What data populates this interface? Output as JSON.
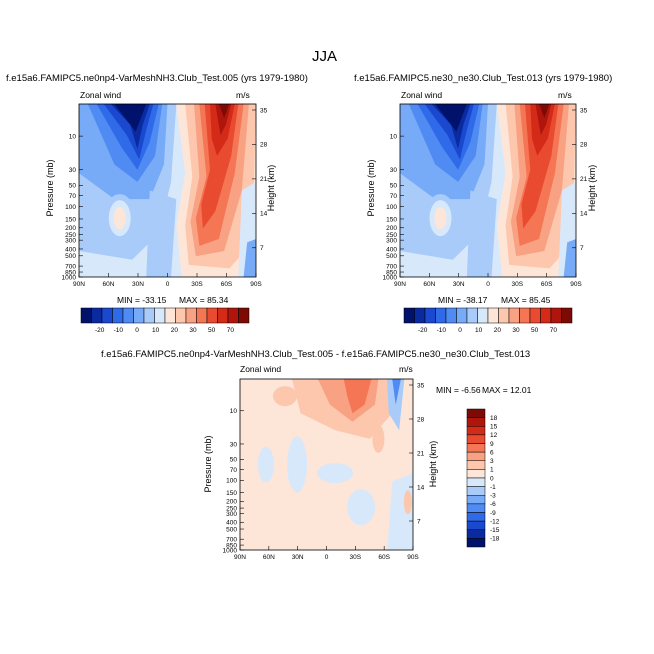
{
  "page": {
    "title": "JJA"
  },
  "chart_data": [
    {
      "id": "panel1",
      "type": "heatmap",
      "title": "f.e15a6.FAMIPC5.ne0np4-VarMeshNH3.Club_Test.005 (yrs 1979-1980)",
      "field_label": "Zonal wind",
      "units": "m/s",
      "xlabel": "",
      "ylabel": "Pressure (mb)",
      "right_ylabel": "Height (km)",
      "x_ticks": [
        "90N",
        "60N",
        "30N",
        "0",
        "30S",
        "60S",
        "90S"
      ],
      "y_ticks": [
        "10",
        "30",
        "50",
        "70",
        "100",
        "150",
        "200",
        "250",
        "300",
        "400",
        "500",
        "700",
        "850",
        "1000"
      ],
      "right_ticks": [
        "35",
        "28",
        "21",
        "14",
        "7"
      ],
      "min_label": "MIN = -33.15",
      "max_label": "MAX = 85.34",
      "min": -33.15,
      "max": 85.34,
      "colorbar_levels": [
        "-20",
        "-10",
        "0",
        "10",
        "20",
        "30",
        "50",
        "70"
      ]
    },
    {
      "id": "panel2",
      "type": "heatmap",
      "title": "f.e15a6.FAMIPC5.ne30_ne30.Club_Test.013 (yrs 1979-1980)",
      "field_label": "Zonal wind",
      "units": "m/s",
      "xlabel": "",
      "ylabel": "Pressure (mb)",
      "right_ylabel": "Height (km)",
      "x_ticks": [
        "90N",
        "60N",
        "30N",
        "0",
        "30S",
        "60S",
        "90S"
      ],
      "y_ticks": [
        "10",
        "30",
        "50",
        "70",
        "100",
        "150",
        "200",
        "250",
        "300",
        "400",
        "500",
        "700",
        "850",
        "1000"
      ],
      "right_ticks": [
        "35",
        "28",
        "21",
        "14",
        "7"
      ],
      "min_label": "MIN = -38.17",
      "max_label": "MAX = 85.45",
      "min": -38.17,
      "max": 85.45,
      "colorbar_levels": [
        "-20",
        "-10",
        "0",
        "10",
        "20",
        "30",
        "50",
        "70"
      ]
    },
    {
      "id": "panel3",
      "type": "heatmap",
      "title": "f.e15a6.FAMIPC5.ne0np4-VarMeshNH3.Club_Test.005 - f.e15a6.FAMIPC5.ne30_ne30.Club_Test.013",
      "field_label": "Zonal wind",
      "units": "m/s",
      "xlabel": "",
      "ylabel": "Pressure (mb)",
      "right_ylabel": "Height (km)",
      "x_ticks": [
        "90N",
        "60N",
        "30N",
        "0",
        "30S",
        "60S",
        "90S"
      ],
      "y_ticks": [
        "10",
        "30",
        "50",
        "70",
        "100",
        "150",
        "200",
        "250",
        "300",
        "400",
        "500",
        "700",
        "850",
        "1000"
      ],
      "right_ticks": [
        "35",
        "28",
        "21",
        "14",
        "7"
      ],
      "min_label": "MIN = -6.56",
      "max_label": "MAX = 12.01",
      "min": -6.56,
      "max": 12.01,
      "colorbar_levels": [
        "18",
        "15",
        "12",
        "9",
        "6",
        "3",
        "1",
        "0",
        "-1",
        "-3",
        "-6",
        "-9",
        "-12",
        "-15",
        "-18"
      ]
    }
  ],
  "colors": {
    "absolute_scale": [
      "#00126b",
      "#0a2aa0",
      "#1a48cf",
      "#2f6ae8",
      "#4f8bf2",
      "#78abf7",
      "#a8cbfa",
      "#d8e8fb",
      "#fde6d8",
      "#fcc7ad",
      "#f9a183",
      "#f47654",
      "#e94b31",
      "#d42b18",
      "#b0150d",
      "#7d0a05"
    ],
    "diff_scale": [
      "#7d0a05",
      "#b0150d",
      "#d42b18",
      "#e94b31",
      "#f47654",
      "#f9a183",
      "#fcc7ad",
      "#fde6d8",
      "#d8e8fb",
      "#a8cbfa",
      "#78abf7",
      "#4f8bf2",
      "#2f6ae8",
      "#1a48cf",
      "#0a2aa0",
      "#00126b"
    ]
  }
}
